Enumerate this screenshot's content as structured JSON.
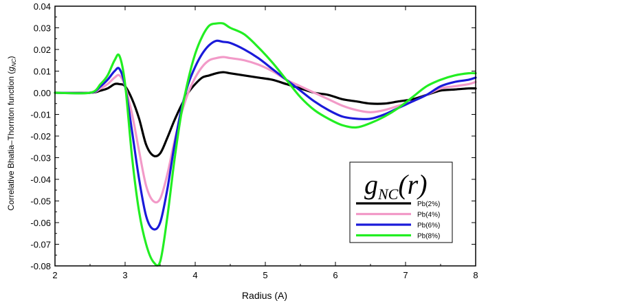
{
  "chart_data": {
    "type": "line",
    "title": "",
    "xlabel": "Radius (A)",
    "ylabel_main": "Correlative Bhatia–Thornton function (",
    "ylabel_var": "g",
    "ylabel_sub": "NC",
    "ylabel_close": ")",
    "xlim": [
      2,
      8
    ],
    "ylim": [
      -0.08,
      0.04
    ],
    "xticks": [
      2,
      3,
      4,
      5,
      6,
      7,
      8
    ],
    "xtick_labels": [
      "2",
      "3",
      "4",
      "5",
      "6",
      "7",
      "8"
    ],
    "yticks": [
      0.04,
      0.03,
      0.02,
      0.01,
      0.0,
      -0.01,
      -0.02,
      -0.03,
      -0.04,
      -0.05,
      -0.06,
      -0.07,
      -0.08
    ],
    "ytick_labels": [
      "0.04",
      "0.03",
      "0.02",
      "0.01",
      "0.00",
      "-0.01",
      "-0.02",
      "-0.03",
      "-0.04",
      "-0.05",
      "-0.06",
      "-0.07",
      "-0.08"
    ],
    "legend": {
      "position": "lower-right",
      "title_main": "g",
      "title_sub": "NC",
      "title_arg": "(r)"
    },
    "series": [
      {
        "name": "Pb(2%)",
        "color": "#000000",
        "x": [
          2.0,
          2.5,
          2.65,
          2.75,
          2.85,
          2.92,
          3.0,
          3.1,
          3.2,
          3.3,
          3.4,
          3.5,
          3.6,
          3.7,
          3.8,
          3.9,
          4.0,
          4.1,
          4.2,
          4.3,
          4.4,
          4.5,
          4.7,
          4.9,
          5.1,
          5.3,
          5.5,
          5.7,
          5.9,
          6.1,
          6.3,
          6.5,
          6.7,
          6.9,
          7.1,
          7.3,
          7.5,
          7.7,
          7.9,
          8.0
        ],
        "y": [
          0.0,
          0.0,
          0.001,
          0.002,
          0.004,
          0.004,
          0.003,
          -0.003,
          -0.012,
          -0.024,
          -0.029,
          -0.028,
          -0.021,
          -0.013,
          -0.006,
          0.0,
          0.004,
          0.007,
          0.008,
          0.009,
          0.0095,
          0.009,
          0.008,
          0.007,
          0.006,
          0.004,
          0.002,
          0.0,
          -0.001,
          -0.003,
          -0.004,
          -0.005,
          -0.005,
          -0.004,
          -0.003,
          -0.001,
          0.001,
          0.0015,
          0.002,
          0.002
        ]
      },
      {
        "name": "Pb(4%)",
        "color": "#f29ac8",
        "x": [
          2.0,
          2.5,
          2.65,
          2.75,
          2.85,
          2.92,
          3.0,
          3.1,
          3.2,
          3.3,
          3.4,
          3.5,
          3.6,
          3.7,
          3.8,
          3.9,
          4.0,
          4.1,
          4.2,
          4.3,
          4.4,
          4.5,
          4.7,
          4.9,
          5.1,
          5.3,
          5.5,
          5.7,
          5.9,
          6.1,
          6.3,
          6.5,
          6.7,
          6.9,
          7.1,
          7.3,
          7.5,
          7.7,
          7.9,
          8.0
        ],
        "y": [
          0.0,
          0.0,
          0.002,
          0.004,
          0.007,
          0.008,
          0.003,
          -0.01,
          -0.027,
          -0.043,
          -0.05,
          -0.049,
          -0.038,
          -0.023,
          -0.01,
          0.0,
          0.007,
          0.012,
          0.015,
          0.016,
          0.0165,
          0.016,
          0.015,
          0.013,
          0.01,
          0.006,
          0.003,
          0.0,
          -0.003,
          -0.006,
          -0.008,
          -0.009,
          -0.008,
          -0.006,
          -0.004,
          -0.001,
          0.002,
          0.003,
          0.004,
          0.005
        ]
      },
      {
        "name": "Pb(6%)",
        "color": "#1a1ad9",
        "x": [
          2.0,
          2.5,
          2.65,
          2.75,
          2.85,
          2.92,
          3.0,
          3.1,
          3.2,
          3.3,
          3.4,
          3.5,
          3.6,
          3.7,
          3.8,
          3.9,
          4.0,
          4.1,
          4.2,
          4.3,
          4.4,
          4.5,
          4.7,
          4.9,
          5.1,
          5.3,
          5.5,
          5.7,
          5.9,
          6.1,
          6.3,
          6.5,
          6.7,
          6.9,
          7.1,
          7.3,
          7.5,
          7.7,
          7.9,
          8.0
        ],
        "y": [
          0.0,
          0.0,
          0.003,
          0.006,
          0.01,
          0.011,
          0.003,
          -0.018,
          -0.04,
          -0.057,
          -0.063,
          -0.06,
          -0.045,
          -0.025,
          -0.008,
          0.004,
          0.012,
          0.018,
          0.022,
          0.024,
          0.0235,
          0.023,
          0.02,
          0.016,
          0.011,
          0.006,
          0.001,
          -0.004,
          -0.008,
          -0.011,
          -0.012,
          -0.012,
          -0.01,
          -0.007,
          -0.004,
          -0.001,
          0.003,
          0.005,
          0.006,
          0.007
        ]
      },
      {
        "name": "Pb(8%)",
        "color": "#22ee22",
        "x": [
          2.0,
          2.5,
          2.65,
          2.75,
          2.85,
          2.92,
          3.0,
          3.1,
          3.2,
          3.3,
          3.4,
          3.5,
          3.6,
          3.7,
          3.8,
          3.9,
          4.0,
          4.1,
          4.2,
          4.3,
          4.4,
          4.5,
          4.7,
          4.9,
          5.1,
          5.3,
          5.5,
          5.7,
          5.9,
          6.1,
          6.3,
          6.5,
          6.7,
          6.9,
          7.1,
          7.3,
          7.5,
          7.7,
          7.9,
          8.0
        ],
        "y": [
          0.0,
          0.0,
          0.004,
          0.008,
          0.015,
          0.017,
          0.004,
          -0.03,
          -0.055,
          -0.07,
          -0.078,
          -0.078,
          -0.058,
          -0.032,
          -0.01,
          0.006,
          0.018,
          0.026,
          0.031,
          0.032,
          0.032,
          0.03,
          0.027,
          0.021,
          0.014,
          0.006,
          -0.002,
          -0.008,
          -0.012,
          -0.015,
          -0.016,
          -0.014,
          -0.011,
          -0.007,
          -0.002,
          0.003,
          0.006,
          0.008,
          0.009,
          0.009
        ]
      }
    ]
  }
}
